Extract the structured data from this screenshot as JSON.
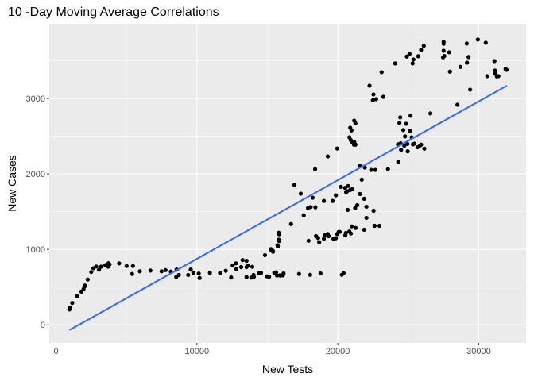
{
  "chart_data": {
    "type": "scatter",
    "title": "10 -Day Moving Average Correlations",
    "xlabel": "New Tests",
    "ylabel": "New Cases",
    "xlim": [
      -480,
      33360
    ],
    "ylim": [
      -240,
      3990
    ],
    "x_ticks": [
      0,
      10000,
      20000,
      30000
    ],
    "y_ticks": [
      0,
      1000,
      2000,
      3000
    ],
    "x_tick_labels": [
      "0",
      "10000",
      "20000",
      "30000"
    ],
    "y_tick_labels": [
      "0",
      "1000",
      "2000",
      "3000"
    ],
    "grid": true,
    "point_color": "#000000",
    "trend_line": {
      "method": "linear",
      "color": "#3366FF",
      "x": [
        950,
        32000
      ],
      "y": [
        -70,
        3170
      ]
    },
    "points": [
      [
        948,
        203
      ],
      [
        1000,
        230
      ],
      [
        1150,
        290
      ],
      [
        1500,
        380
      ],
      [
        1800,
        440
      ],
      [
        1950,
        470
      ],
      [
        2000,
        500
      ],
      [
        2050,
        520
      ],
      [
        2250,
        600
      ],
      [
        2500,
        700
      ],
      [
        2650,
        750
      ],
      [
        2850,
        772
      ],
      [
        3050,
        730
      ],
      [
        3200,
        770
      ],
      [
        3500,
        790
      ],
      [
        3730,
        817
      ],
      [
        3700,
        770
      ],
      [
        3800,
        800
      ],
      [
        4480,
        814
      ],
      [
        5010,
        779
      ],
      [
        5460,
        779
      ],
      [
        5400,
        674
      ],
      [
        5950,
        709
      ],
      [
        6700,
        719
      ],
      [
        7490,
        709
      ],
      [
        7770,
        725
      ],
      [
        8150,
        705
      ],
      [
        8560,
        732
      ],
      [
        8530,
        633
      ],
      [
        8720,
        660
      ],
      [
        9380,
        660
      ],
      [
        9560,
        732
      ],
      [
        9750,
        690
      ],
      [
        10130,
        680
      ],
      [
        10190,
        620
      ],
      [
        10920,
        687
      ],
      [
        11640,
        687
      ],
      [
        12050,
        716
      ],
      [
        12430,
        627
      ],
      [
        12540,
        786
      ],
      [
        12770,
        814
      ],
      [
        12800,
        737
      ],
      [
        13140,
        765
      ],
      [
        13520,
        848
      ],
      [
        13520,
        765
      ],
      [
        13520,
        632
      ],
      [
        13930,
        768
      ],
      [
        14040,
        635
      ],
      [
        14550,
        687
      ],
      [
        15120,
        635
      ],
      [
        14830,
        923
      ],
      [
        15300,
        985
      ],
      [
        15400,
        968
      ],
      [
        15740,
        1040
      ],
      [
        15830,
        1110
      ],
      [
        15830,
        1200
      ],
      [
        15620,
        696
      ],
      [
        15870,
        655
      ],
      [
        16100,
        655
      ],
      [
        13240,
        858
      ],
      [
        13640,
        785
      ],
      [
        13860,
        625
      ],
      [
        14020,
        660
      ],
      [
        14390,
        681
      ],
      [
        14960,
        642
      ],
      [
        15490,
        692
      ],
      [
        15680,
        653
      ],
      [
        15940,
        653
      ],
      [
        16150,
        681
      ],
      [
        17250,
        674
      ],
      [
        18040,
        662
      ],
      [
        18770,
        681
      ],
      [
        20280,
        663
      ],
      [
        20410,
        685
      ],
      [
        15250,
        1003
      ],
      [
        15380,
        982
      ],
      [
        15720,
        1055
      ],
      [
        15810,
        1128
      ],
      [
        15810,
        1220
      ],
      [
        16680,
        1336
      ],
      [
        17580,
        1450
      ],
      [
        17920,
        1114
      ],
      [
        16920,
        1854
      ],
      [
        17370,
        1738
      ],
      [
        18390,
        2064
      ],
      [
        18220,
        1685
      ],
      [
        17880,
        1547
      ],
      [
        18070,
        1561
      ],
      [
        18410,
        1558
      ],
      [
        19010,
        1642
      ],
      [
        19630,
        1642
      ],
      [
        19860,
        1716
      ],
      [
        19290,
        2232
      ],
      [
        19960,
        2337
      ],
      [
        18450,
        1175
      ],
      [
        18600,
        1150
      ],
      [
        18680,
        1094
      ],
      [
        19010,
        1140
      ],
      [
        19070,
        1186
      ],
      [
        19290,
        1203
      ],
      [
        19350,
        1175
      ],
      [
        19690,
        1140
      ],
      [
        19860,
        1147
      ],
      [
        19950,
        1203
      ],
      [
        20060,
        1231
      ],
      [
        20140,
        1231
      ],
      [
        20530,
        1186
      ],
      [
        20570,
        1217
      ],
      [
        20820,
        1238
      ],
      [
        20930,
        1210
      ],
      [
        20990,
        1305
      ],
      [
        21270,
        1284
      ],
      [
        20700,
        1523
      ],
      [
        21230,
        1548
      ],
      [
        21380,
        1586
      ],
      [
        20220,
        1829
      ],
      [
        20510,
        1815
      ],
      [
        20730,
        1840
      ],
      [
        20590,
        1759
      ],
      [
        20660,
        1770
      ],
      [
        20880,
        1787
      ],
      [
        21030,
        1798
      ],
      [
        21570,
        1734
      ],
      [
        21700,
        1924
      ],
      [
        21870,
        1671
      ],
      [
        22030,
        1565
      ],
      [
        22540,
        1512
      ],
      [
        22030,
        1418
      ],
      [
        21870,
        1260
      ],
      [
        22610,
        1312
      ],
      [
        22950,
        1312
      ],
      [
        21570,
        2109
      ],
      [
        21920,
        2085
      ],
      [
        22370,
        2053
      ],
      [
        22660,
        2053
      ],
      [
        23560,
        2064
      ],
      [
        24290,
        2159
      ],
      [
        20820,
        2486
      ],
      [
        21020,
        2422
      ],
      [
        21170,
        2422
      ],
      [
        20880,
        2612
      ],
      [
        21160,
        2707
      ],
      [
        24720,
        2374
      ],
      [
        24940,
        2398
      ],
      [
        24960,
        2300
      ],
      [
        25240,
        2486
      ],
      [
        25130,
        2570
      ],
      [
        24850,
        2665
      ],
      [
        25840,
        2377
      ],
      [
        25910,
        2388
      ],
      [
        26140,
        2335
      ],
      [
        22250,
        3170
      ],
      [
        22530,
        3054
      ],
      [
        22490,
        2977
      ],
      [
        22720,
        2991
      ],
      [
        23230,
        3022
      ],
      [
        23110,
        3349
      ],
      [
        24070,
        3465
      ],
      [
        24900,
        3556
      ],
      [
        25090,
        3591
      ],
      [
        25310,
        3465
      ],
      [
        25370,
        3517
      ],
      [
        25710,
        3560
      ],
      [
        25910,
        3644
      ],
      [
        26100,
        3697
      ],
      [
        27470,
        3545
      ],
      [
        27560,
        3563
      ],
      [
        27510,
        3633
      ],
      [
        27510,
        3749
      ],
      [
        27510,
        3725
      ],
      [
        27900,
        3612
      ],
      [
        27960,
        3356
      ],
      [
        28700,
        3419
      ],
      [
        29150,
        3728
      ],
      [
        29940,
        3781
      ],
      [
        30500,
        3739
      ],
      [
        29280,
        3549
      ],
      [
        29170,
        3475
      ],
      [
        31120,
        3496
      ],
      [
        31160,
        3370
      ],
      [
        31180,
        3328
      ],
      [
        31290,
        3293
      ],
      [
        31400,
        3296
      ],
      [
        30610,
        3296
      ],
      [
        31910,
        3391
      ],
      [
        31980,
        3380
      ],
      [
        29390,
        3117
      ],
      [
        28490,
        2917
      ],
      [
        26570,
        2802
      ],
      [
        25160,
        2771
      ],
      [
        24430,
        2750
      ],
      [
        24370,
        2676
      ],
      [
        24650,
        2581
      ],
      [
        24770,
        2497
      ],
      [
        24270,
        2392
      ],
      [
        24460,
        2406
      ],
      [
        24490,
        2318
      ],
      [
        25330,
        2392
      ],
      [
        25440,
        2402
      ],
      [
        25660,
        2353
      ],
      [
        20970,
        2577
      ],
      [
        21250,
        2672
      ],
      [
        20910,
        2451
      ],
      [
        21150,
        2388
      ],
      [
        21250,
        2388
      ]
    ]
  }
}
